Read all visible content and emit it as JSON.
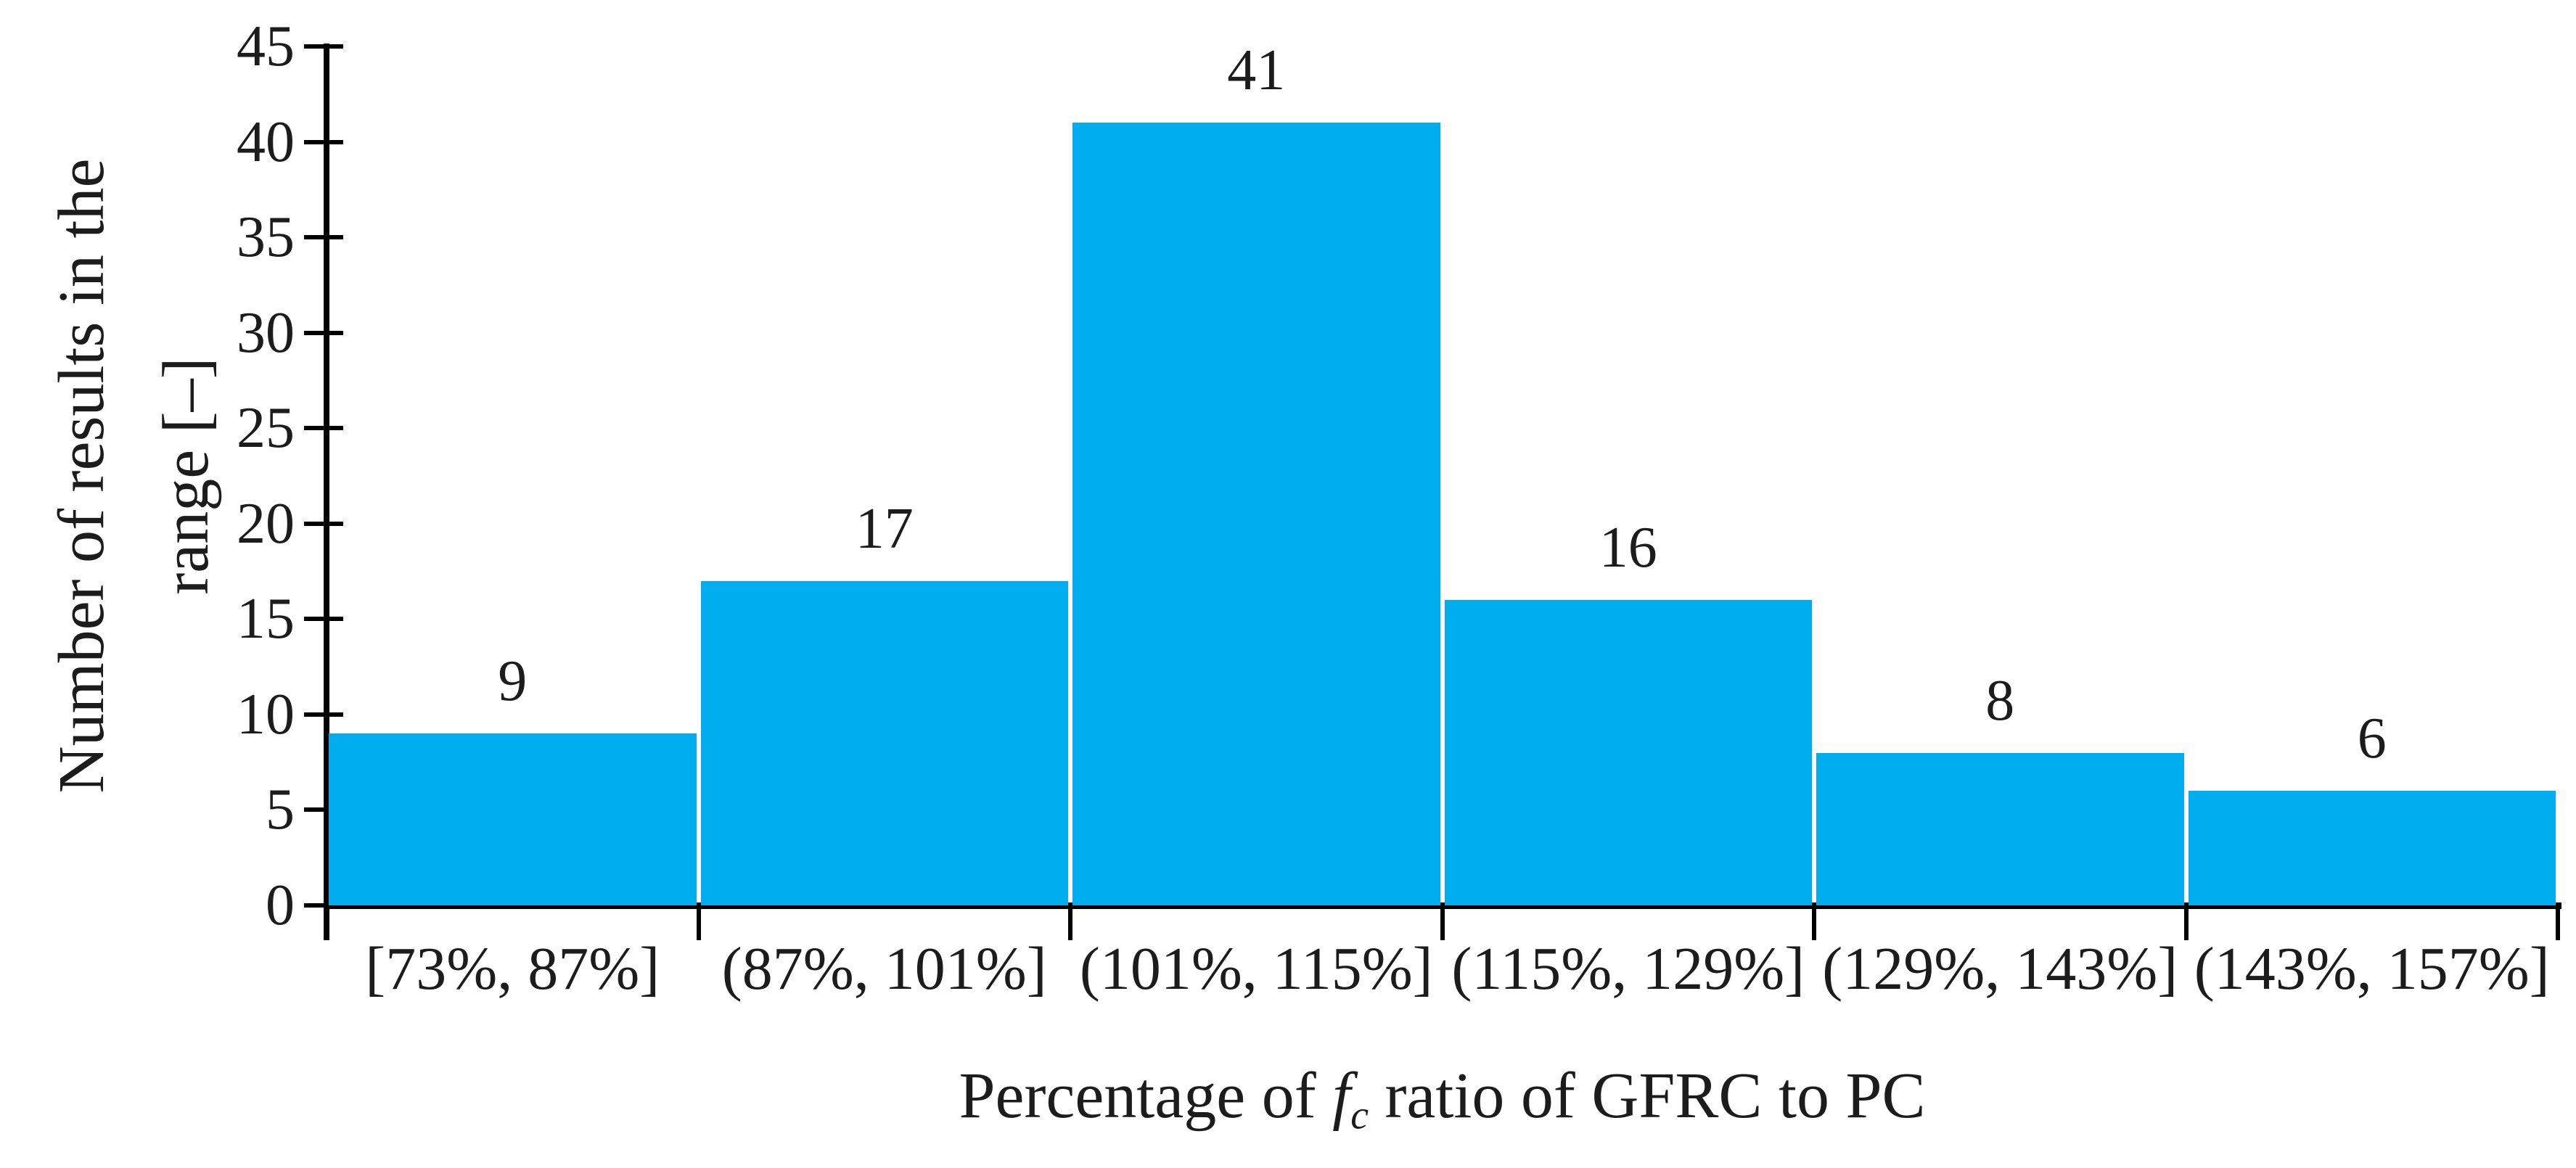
{
  "chart_data": {
    "type": "bar",
    "title": "",
    "categories": [
      "[73%, 87%]",
      "(87%, 101%]",
      "(101%, 115%]",
      "(115%, 129%]",
      "(129%, 143%]",
      "(143%, 157%]"
    ],
    "values": [
      9,
      17,
      41,
      16,
      8,
      6
    ],
    "yticks": [
      0,
      5,
      10,
      15,
      20,
      25,
      30,
      35,
      40,
      45
    ],
    "ylim": [
      0,
      45
    ],
    "grid": false,
    "legend_position": "none",
    "bar_color": "#00AEEF",
    "axis_color": "#000000",
    "text_color": "#1c1c1c",
    "xlabel_parts": {
      "prefix": "Percentage of ",
      "symbol": "f",
      "subscript": "c",
      "suffix": " ratio of GFRC to PC"
    },
    "ylabel_lines": [
      "Number of results in the",
      "range [–]"
    ]
  }
}
